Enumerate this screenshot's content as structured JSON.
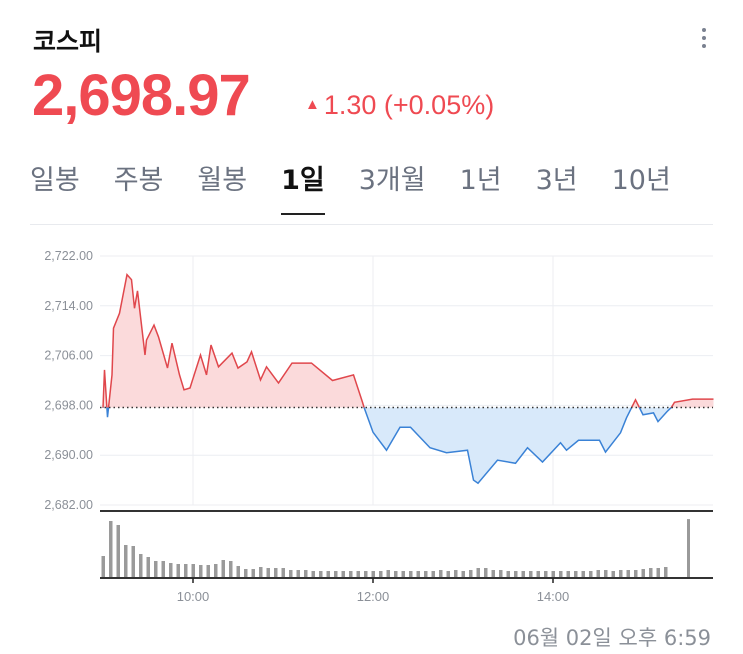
{
  "header": {
    "title": "코스피",
    "menu_icon": "more-vertical-icon"
  },
  "quote": {
    "price": "2,698.97",
    "change_icon": "triangle-up-icon",
    "change": "1.30 (+0.05%)"
  },
  "tabs": [
    {
      "label": "일봉",
      "selected": false
    },
    {
      "label": "주봉",
      "selected": false
    },
    {
      "label": "월봉",
      "selected": false
    },
    {
      "label": "1일",
      "selected": true
    },
    {
      "label": "3개월",
      "selected": false
    },
    {
      "label": "1년",
      "selected": false
    },
    {
      "label": "3년",
      "selected": false
    },
    {
      "label": "10년",
      "selected": false
    }
  ],
  "footer": {
    "timestamp": "06월 02일 오후 6:59"
  },
  "colors": {
    "up": "#e0474c",
    "up_fill": "#fbdadb",
    "down": "#3a82d6",
    "down_fill": "#d8e9fa",
    "volume": "#9a9a9a"
  },
  "chart_data": {
    "type": "line",
    "baseline": 2697.67,
    "ylim": [
      2682,
      2722
    ],
    "yticks": [
      "2,722.00",
      "2,714.00",
      "2,706.00",
      "2,698.00",
      "2,690.00",
      "2,682.00"
    ],
    "ytick_values": [
      2722,
      2714,
      2706,
      2698,
      2690,
      2682
    ],
    "xticks": [
      "10:00",
      "12:00",
      "14:00"
    ],
    "xlim": [
      "09:00",
      "15:47"
    ],
    "grid": true,
    "price": [
      [
        "09:00",
        2697.6
      ],
      [
        "09:01",
        2703.7
      ],
      [
        "09:03",
        2696.1
      ],
      [
        "09:06",
        2702.9
      ],
      [
        "09:07",
        2710.4
      ],
      [
        "09:11",
        2712.8
      ],
      [
        "09:16",
        2719.0
      ],
      [
        "09:19",
        2718.2
      ],
      [
        "09:21",
        2713.6
      ],
      [
        "09:23",
        2716.4
      ],
      [
        "09:28",
        2706.1
      ],
      [
        "09:29",
        2708.5
      ],
      [
        "09:34",
        2710.9
      ],
      [
        "09:37",
        2709.0
      ],
      [
        "09:43",
        2704.0
      ],
      [
        "09:46",
        2708.0
      ],
      [
        "09:51",
        2702.9
      ],
      [
        "09:54",
        2700.5
      ],
      [
        "09:58",
        2700.8
      ],
      [
        "10:05",
        2706.1
      ],
      [
        "10:09",
        2702.9
      ],
      [
        "10:12",
        2707.7
      ],
      [
        "10:17",
        2704.2
      ],
      [
        "10:26",
        2706.4
      ],
      [
        "10:30",
        2704.0
      ],
      [
        "10:36",
        2705.0
      ],
      [
        "10:39",
        2706.6
      ],
      [
        "10:45",
        2702.1
      ],
      [
        "10:49",
        2704.2
      ],
      [
        "10:57",
        2701.6
      ],
      [
        "11:06",
        2704.8
      ],
      [
        "11:19",
        2704.8
      ],
      [
        "11:33",
        2702.0
      ],
      [
        "11:47",
        2702.9
      ],
      [
        "11:53",
        2698.5
      ],
      [
        "11:54",
        2697.7
      ],
      [
        "12:00",
        2693.7
      ],
      [
        "12:09",
        2690.8
      ],
      [
        "12:18",
        2694.5
      ],
      [
        "12:25",
        2694.5
      ],
      [
        "12:38",
        2691.2
      ],
      [
        "12:49",
        2690.4
      ],
      [
        "13:03",
        2690.8
      ],
      [
        "13:07",
        2686.0
      ],
      [
        "13:10",
        2685.5
      ],
      [
        "13:23",
        2689.2
      ],
      [
        "13:35",
        2688.7
      ],
      [
        "13:43",
        2691.2
      ],
      [
        "13:53",
        2688.9
      ],
      [
        "14:05",
        2692.0
      ],
      [
        "14:09",
        2690.8
      ],
      [
        "14:17",
        2692.4
      ],
      [
        "14:31",
        2692.4
      ],
      [
        "14:35",
        2690.5
      ],
      [
        "14:45",
        2693.6
      ],
      [
        "14:49",
        2696.0
      ],
      [
        "14:55",
        2698.9
      ],
      [
        "15:00",
        2696.5
      ],
      [
        "15:07",
        2696.8
      ],
      [
        "15:10",
        2695.4
      ],
      [
        "15:16",
        2697.0
      ],
      [
        "15:19",
        2697.7
      ],
      [
        "15:21",
        2698.5
      ],
      [
        "15:33",
        2699.0
      ],
      [
        "15:47",
        2699.0
      ]
    ],
    "volume_start": "09:00",
    "volume_interval_min": 5,
    "volume": [
      22,
      57,
      53,
      33,
      32,
      24,
      21,
      17,
      17,
      15,
      14,
      14,
      14,
      13,
      13,
      14,
      18,
      17,
      12,
      9,
      9,
      11,
      10,
      10,
      10,
      8,
      8,
      8,
      7,
      7,
      7,
      7,
      7,
      7,
      7,
      7,
      7,
      7,
      8,
      7,
      7,
      7,
      7,
      7,
      7,
      8,
      7,
      8,
      7,
      8,
      10,
      10,
      8,
      8,
      7,
      7,
      7,
      7,
      7,
      7,
      7,
      7,
      7,
      7,
      7,
      7,
      8,
      8,
      7,
      8,
      8,
      8,
      9,
      10,
      10,
      11
    ],
    "volume_close": [
      "15:30",
      31
    ]
  }
}
